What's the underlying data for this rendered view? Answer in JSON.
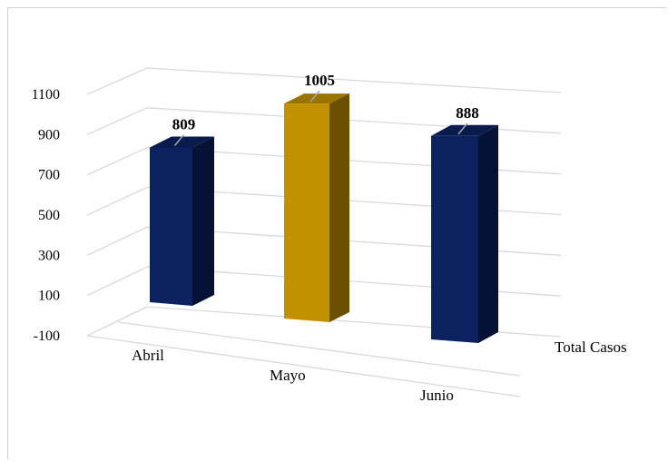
{
  "chart_data": {
    "type": "bar",
    "style": "3d-column",
    "categories": [
      "Abril",
      "Mayo",
      "Junio"
    ],
    "series": [
      {
        "name": "Total Casos",
        "values": [
          809,
          1005,
          888
        ]
      }
    ],
    "bar_colors": [
      "#0b2160",
      "#c19100",
      "#0b2160"
    ],
    "data_labels": [
      "809",
      "1005",
      "888"
    ],
    "yticks": [
      "1100",
      "900",
      "700",
      "500",
      "300",
      "100",
      "-100"
    ],
    "ylim": [
      -100,
      1100
    ],
    "grid": true,
    "title": "",
    "xlabel": "",
    "ylabel": ""
  }
}
